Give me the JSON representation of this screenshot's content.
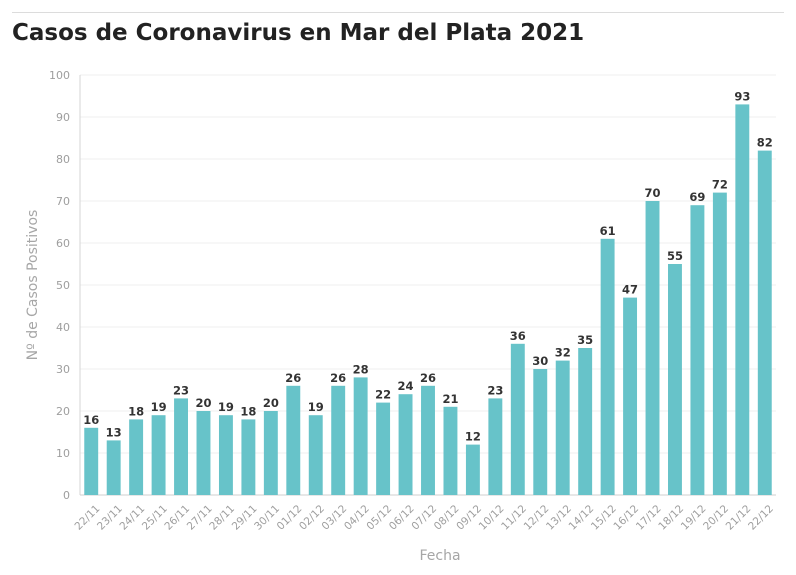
{
  "chart_data": {
    "type": "bar",
    "title": "Casos de Coronavirus en Mar del Plata 2021",
    "xlabel": "Fecha",
    "ylabel": "Nº de Casos Positivos",
    "ylim": [
      0,
      100
    ],
    "yticks": [
      0,
      10,
      20,
      30,
      40,
      50,
      60,
      70,
      80,
      90,
      100
    ],
    "grid": true,
    "bar_color": "#67c3c9",
    "categories": [
      "22/11",
      "23/11",
      "24/11",
      "25/11",
      "26/11",
      "27/11",
      "28/11",
      "29/11",
      "30/11",
      "01/12",
      "02/12",
      "03/12",
      "04/12",
      "05/12",
      "06/12",
      "07/12",
      "08/12",
      "09/12",
      "10/12",
      "11/12",
      "12/12",
      "13/12",
      "14/12",
      "15/12",
      "16/12",
      "17/12",
      "18/12",
      "19/12",
      "20/12",
      "21/12",
      "22/12"
    ],
    "values": [
      16,
      13,
      18,
      19,
      23,
      20,
      19,
      18,
      20,
      26,
      19,
      26,
      28,
      22,
      24,
      26,
      21,
      12,
      23,
      36,
      30,
      32,
      35,
      61,
      47,
      70,
      55,
      69,
      72,
      93,
      82
    ]
  }
}
